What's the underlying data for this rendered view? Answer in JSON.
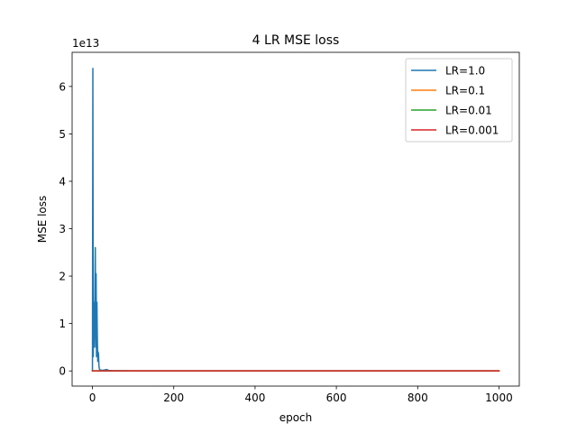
{
  "chart_data": {
    "type": "line",
    "title": "4 LR MSE loss",
    "xlabel": "epoch",
    "ylabel": "MSE loss",
    "y_offset_text": "1e13",
    "y_scale_factor": 10000000000000.0,
    "xlim": [
      -50,
      1050
    ],
    "ylim": [
      -0.32,
      6.72
    ],
    "x_ticks": [
      0,
      200,
      400,
      600,
      800,
      1000
    ],
    "x_tick_labels": [
      "0",
      "200",
      "400",
      "600",
      "800",
      "1000"
    ],
    "y_ticks": [
      0,
      1,
      2,
      3,
      4,
      5,
      6
    ],
    "y_tick_labels": [
      "0",
      "1",
      "2",
      "3",
      "4",
      "5",
      "6"
    ],
    "grid": false,
    "legend_position": "top-right",
    "series": [
      {
        "name": "LR=1.0",
        "color": "#1f77b4",
        "x": [
          0,
          1,
          2,
          3,
          4,
          5,
          6,
          7,
          8,
          9,
          10,
          11,
          12,
          13,
          14,
          15,
          16,
          17,
          18,
          20,
          25,
          30,
          35,
          40,
          50,
          100,
          200,
          400,
          600,
          800,
          1000
        ],
        "values": [
          0.02,
          6.38,
          0.3,
          1.45,
          0.5,
          0.9,
          1.5,
          2.6,
          0.5,
          2.05,
          0.3,
          1.45,
          0.7,
          0.2,
          0.4,
          0.35,
          0.1,
          0.05,
          0.02,
          0.02,
          0.01,
          0.02,
          0.03,
          0.01,
          0.005,
          0.002,
          0.001,
          0.0,
          0.0,
          0.0,
          0.0
        ]
      },
      {
        "name": "LR=0.1",
        "color": "#ff7f0e",
        "x": [
          0,
          10,
          50,
          200,
          400,
          600,
          800,
          1000
        ],
        "values": [
          0.001,
          0.0005,
          0.0001,
          0.0,
          0.0,
          0.0,
          0.0,
          0.0
        ]
      },
      {
        "name": "LR=0.01",
        "color": "#2ca02c",
        "x": [
          0,
          10,
          50,
          200,
          400,
          600,
          800,
          1000
        ],
        "values": [
          0.001,
          0.0005,
          0.0001,
          0.0,
          0.0,
          0.0,
          0.0,
          0.0
        ]
      },
      {
        "name": "LR=0.001",
        "color": "#d62728",
        "x": [
          0,
          10,
          50,
          200,
          400,
          600,
          800,
          1000
        ],
        "values": [
          0.001,
          0.0008,
          0.0005,
          0.0003,
          0.0002,
          0.0001,
          0.0001,
          0.0001
        ]
      }
    ]
  }
}
